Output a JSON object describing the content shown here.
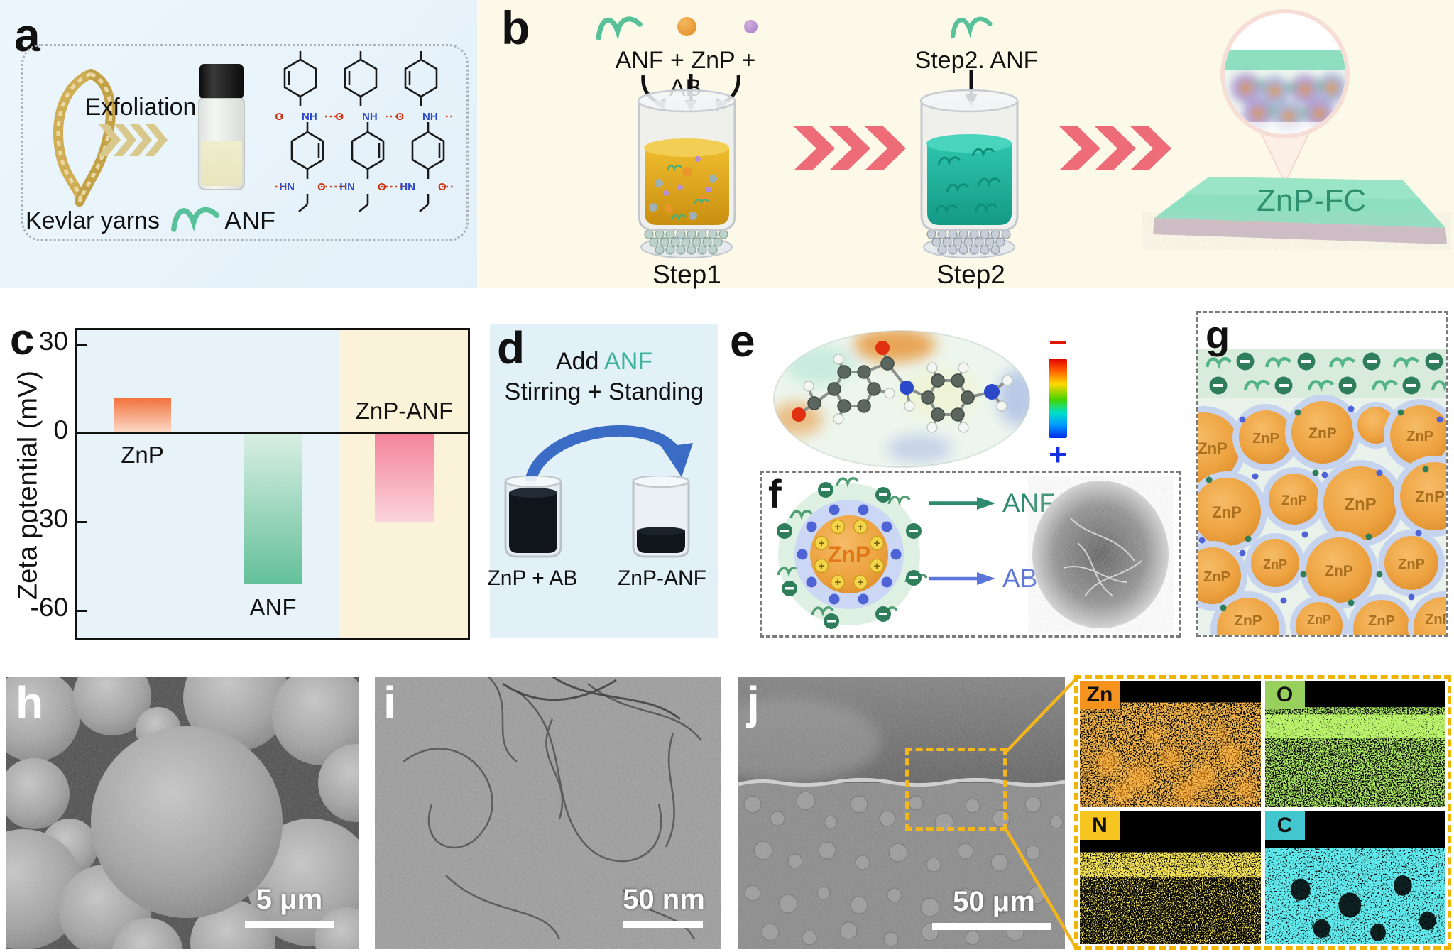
{
  "figure": {
    "panel_a": {
      "label": "a",
      "exfoliation": "Exfoliation",
      "kevlar": "Kevlar yarns",
      "anf": "ANF",
      "structure": {
        "o": "O",
        "nh": "NH",
        "hn": "HN"
      }
    },
    "panel_b": {
      "label": "b",
      "mix_label": "ANF + ZnP + AB",
      "step1": "Step1",
      "step2_add": "Step2. ANF",
      "step2": "Step2",
      "product": "ZnP-FC"
    },
    "panel_c": {
      "label": "c"
    },
    "panel_d": {
      "label": "d",
      "line1_prefix": "Add ",
      "line1_anf": "ANF",
      "line2": "Stirring + Standing",
      "beaker_left": "ZnP + AB",
      "beaker_right": "ZnP-ANF"
    },
    "panel_e": {
      "label": "e",
      "minus": "−",
      "plus": "+"
    },
    "panel_f": {
      "label": "f",
      "core": "ZnP",
      "arrow_anf": "ANF",
      "arrow_ab": "AB"
    },
    "panel_g": {
      "label": "g",
      "sphere_label": "ZnP"
    },
    "panel_h": {
      "label": "h",
      "scale": "5 μm"
    },
    "panel_i": {
      "label": "i",
      "scale": "50 nm"
    },
    "panel_j": {
      "label": "j",
      "scale": "50 μm",
      "eds": [
        {
          "symbol": "Zn",
          "color": "#f6921e"
        },
        {
          "symbol": "O",
          "color": "#97d05c"
        },
        {
          "symbol": "N",
          "color": "#f6c51f"
        },
        {
          "symbol": "C",
          "color": "#43c7ce"
        }
      ]
    },
    "colors": {
      "anf_teal": "#3eb39b",
      "product_green": "#2f9070",
      "chevron_red": "#ee6b78",
      "chevron_tan": "#d8c88c",
      "arc_arrow_blue": "#3b6cc5",
      "anf_arrow_green": "#2e8b6e",
      "ab_arrow_blue": "#5b76d8",
      "znp_orange": "#f0a445",
      "eds_border_yellow": "#f0b400"
    }
  },
  "chart_data": {
    "type": "bar",
    "title": "",
    "xlabel": "",
    "ylabel": "Zeta potential (mV)",
    "categories": [
      "ZnP",
      "ANF",
      "ZnP-ANF"
    ],
    "values": [
      12,
      -51,
      -30
    ],
    "yticks": [
      30,
      0,
      -30,
      -60
    ],
    "ylim": [
      35,
      -71
    ],
    "grid": false,
    "legend": "none",
    "bar_colors": [
      [
        "#f2703a",
        "#fcdccb"
      ],
      [
        "#d9efe4",
        "#63c09a"
      ],
      [
        "#f3839a",
        "#fbd4da"
      ]
    ],
    "plot_bg_left": "#e7f3f8",
    "plot_bg_right": "#faf3da"
  }
}
